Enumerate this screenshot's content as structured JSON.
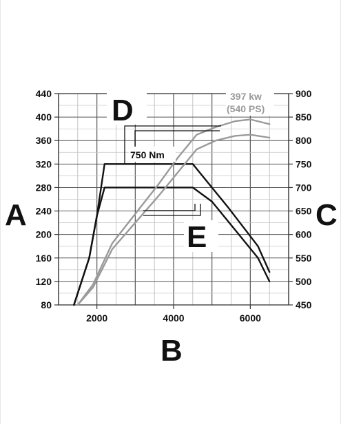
{
  "chart_data": {
    "type": "line",
    "title": "",
    "xlabel": "B",
    "ylabel_left": "A",
    "ylabel_right": "C",
    "xlim": [
      1000,
      7000
    ],
    "ylim_left": [
      80,
      440
    ],
    "ylim_right": [
      450,
      900
    ],
    "x_ticks": [
      "2000",
      "4000",
      "6000"
    ],
    "y_left_ticks": [
      "80",
      "120",
      "160",
      "200",
      "240",
      "280",
      "320",
      "360",
      "400",
      "440"
    ],
    "y_right_ticks": [
      "450",
      "500",
      "550",
      "600",
      "650",
      "700",
      "750",
      "800",
      "850",
      "900"
    ],
    "grid": true,
    "series": [
      {
        "name": "",
        "axis": "right",
        "color": "#111111",
        "x": [
          1400,
          1800,
          2000,
          2200,
          4500,
          5400,
          6200,
          6500
        ],
        "y": [
          450,
          550,
          640,
          750,
          750,
          660,
          575,
          520
        ]
      },
      {
        "name": "",
        "axis": "right",
        "color": "#111111",
        "x": [
          1400,
          1800,
          2000,
          2200,
          4500,
          5000,
          5600,
          6200,
          6500
        ],
        "y": [
          450,
          550,
          640,
          700,
          700,
          670,
          610,
          550,
          500
        ]
      },
      {
        "name": "",
        "axis": "left",
        "color": "#9a9a9a",
        "x": [
          1500,
          1900,
          2400,
          3000,
          3600,
          4100,
          4600,
          5100,
          5600,
          6000,
          6500
        ],
        "y": [
          80,
          115,
          185,
          235,
          285,
          330,
          370,
          383,
          393,
          396,
          388
        ]
      },
      {
        "name": "",
        "axis": "left",
        "color": "#9a9a9a",
        "x": [
          1500,
          1900,
          2400,
          3000,
          3600,
          4100,
          4600,
          5100,
          5600,
          6000,
          6500
        ],
        "y": [
          80,
          110,
          175,
          220,
          265,
          305,
          345,
          360,
          368,
          370,
          365
        ]
      }
    ],
    "annotations": {
      "peak_torque": "750 Nm",
      "peak_power_kw": "397 kw",
      "peak_power_ps": "(540 PS)",
      "label_d": "D",
      "label_e": "E"
    }
  }
}
